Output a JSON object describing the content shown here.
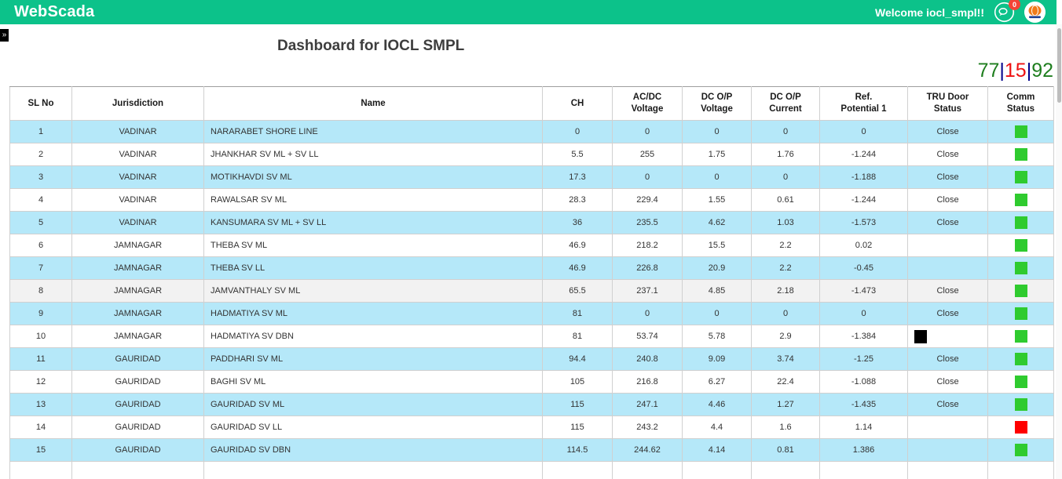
{
  "topbar": {
    "brand": "WebScada",
    "welcome": "Welcome iocl_smpl!!",
    "chat_badge": "0",
    "icons": [
      "chat-icon",
      "indianoil-logo"
    ]
  },
  "sidebar_toggle": "»",
  "page": {
    "title": "Dashboard for IOCL SMPL",
    "counters": {
      "green_left": "77",
      "red_middle": "15",
      "green_right": "92",
      "separator": "|"
    }
  },
  "colors": {
    "topbar_green": "#0cc28a",
    "row_blue": "#b5e8f9",
    "row_hover_gray": "#f2f2f2",
    "status_green": "#2fcb2f",
    "status_red": "#ff0000",
    "tru_black": "#000000",
    "badge_red": "#f44336",
    "counter_green": "#1e7e1e",
    "counter_red": "#ee1111",
    "counter_separator": "#00008b"
  },
  "table": {
    "columns": [
      {
        "key": "sl",
        "label": "SL No"
      },
      {
        "key": "jurisdiction",
        "label": "Jurisdiction"
      },
      {
        "key": "name",
        "label": "Name"
      },
      {
        "key": "ch",
        "label": "CH"
      },
      {
        "key": "acdc_voltage",
        "label": "AC/DC\nVoltage"
      },
      {
        "key": "dcop_voltage",
        "label": "DC O/P\nVoltage"
      },
      {
        "key": "dcop_current",
        "label": "DC O/P\nCurrent"
      },
      {
        "key": "ref_potential_1",
        "label": "Ref.\nPotential 1"
      },
      {
        "key": "tru_door_status",
        "label": "TRU Door\nStatus"
      },
      {
        "key": "comm_status",
        "label": "Comm\nStatus"
      }
    ],
    "rows": [
      {
        "sl": "1",
        "jurisdiction": "VADINAR",
        "name": "NARARABET SHORE LINE",
        "ch": "0",
        "acdc_voltage": "0",
        "dcop_voltage": "0",
        "dcop_current": "0",
        "ref_potential_1": "0",
        "tru_door_status": "Close",
        "comm_status": "green",
        "bg": "blue"
      },
      {
        "sl": "2",
        "jurisdiction": "VADINAR",
        "name": "JHANKHAR SV ML + SV LL",
        "ch": "5.5",
        "acdc_voltage": "255",
        "dcop_voltage": "1.75",
        "dcop_current": "1.76",
        "ref_potential_1": "-1.244",
        "tru_door_status": "Close",
        "comm_status": "green",
        "bg": "white"
      },
      {
        "sl": "3",
        "jurisdiction": "VADINAR",
        "name": "MOTIKHAVDI SV ML",
        "ch": "17.3",
        "acdc_voltage": "0",
        "dcop_voltage": "0",
        "dcop_current": "0",
        "ref_potential_1": "-1.188",
        "tru_door_status": "Close",
        "comm_status": "green",
        "bg": "blue"
      },
      {
        "sl": "4",
        "jurisdiction": "VADINAR",
        "name": "RAWALSAR SV ML",
        "ch": "28.3",
        "acdc_voltage": "229.4",
        "dcop_voltage": "1.55",
        "dcop_current": "0.61",
        "ref_potential_1": "-1.244",
        "tru_door_status": "Close",
        "comm_status": "green",
        "bg": "white"
      },
      {
        "sl": "5",
        "jurisdiction": "VADINAR",
        "name": "KANSUMARA SV ML + SV LL",
        "ch": "36",
        "acdc_voltage": "235.5",
        "dcop_voltage": "4.62",
        "dcop_current": "1.03",
        "ref_potential_1": "-1.573",
        "tru_door_status": "Close",
        "comm_status": "green",
        "bg": "blue"
      },
      {
        "sl": "6",
        "jurisdiction": "JAMNAGAR",
        "name": "THEBA SV ML",
        "ch": "46.9",
        "acdc_voltage": "218.2",
        "dcop_voltage": "15.5",
        "dcop_current": "2.2",
        "ref_potential_1": "0.02",
        "tru_door_status": "",
        "comm_status": "green",
        "bg": "white"
      },
      {
        "sl": "7",
        "jurisdiction": "JAMNAGAR",
        "name": "THEBA SV LL",
        "ch": "46.9",
        "acdc_voltage": "226.8",
        "dcop_voltage": "20.9",
        "dcop_current": "2.2",
        "ref_potential_1": "-0.45",
        "tru_door_status": "",
        "comm_status": "green",
        "bg": "blue"
      },
      {
        "sl": "8",
        "jurisdiction": "JAMNAGAR",
        "name": "JAMVANTHALY SV ML",
        "ch": "65.5",
        "acdc_voltage": "237.1",
        "dcop_voltage": "4.85",
        "dcop_current": "2.18",
        "ref_potential_1": "-1.473",
        "tru_door_status": "Close",
        "comm_status": "green",
        "bg": "gray"
      },
      {
        "sl": "9",
        "jurisdiction": "JAMNAGAR",
        "name": "HADMATIYA SV ML",
        "ch": "81",
        "acdc_voltage": "0",
        "dcop_voltage": "0",
        "dcop_current": "0",
        "ref_potential_1": "0",
        "tru_door_status": "Close",
        "comm_status": "green",
        "bg": "blue"
      },
      {
        "sl": "10",
        "jurisdiction": "JAMNAGAR",
        "name": "HADMATIYA SV DBN",
        "ch": "81",
        "acdc_voltage": "53.74",
        "dcop_voltage": "5.78",
        "dcop_current": "2.9",
        "ref_potential_1": "-1.384",
        "tru_door_status": "black-square",
        "comm_status": "green",
        "bg": "white"
      },
      {
        "sl": "11",
        "jurisdiction": "GAURIDAD",
        "name": "PADDHARI SV ML",
        "ch": "94.4",
        "acdc_voltage": "240.8",
        "dcop_voltage": "9.09",
        "dcop_current": "3.74",
        "ref_potential_1": "-1.25",
        "tru_door_status": "Close",
        "comm_status": "green",
        "bg": "blue"
      },
      {
        "sl": "12",
        "jurisdiction": "GAURIDAD",
        "name": "BAGHI SV ML",
        "ch": "105",
        "acdc_voltage": "216.8",
        "dcop_voltage": "6.27",
        "dcop_current": "22.4",
        "ref_potential_1": "-1.088",
        "tru_door_status": "Close",
        "comm_status": "green",
        "bg": "white"
      },
      {
        "sl": "13",
        "jurisdiction": "GAURIDAD",
        "name": "GAURIDAD SV ML",
        "ch": "115",
        "acdc_voltage": "247.1",
        "dcop_voltage": "4.46",
        "dcop_current": "1.27",
        "ref_potential_1": "-1.435",
        "tru_door_status": "Close",
        "comm_status": "green",
        "bg": "blue"
      },
      {
        "sl": "14",
        "jurisdiction": "GAURIDAD",
        "name": "GAURIDAD SV LL",
        "ch": "115",
        "acdc_voltage": "243.2",
        "dcop_voltage": "4.4",
        "dcop_current": "1.6",
        "ref_potential_1": "1.14",
        "tru_door_status": "",
        "comm_status": "red",
        "bg": "white"
      },
      {
        "sl": "15",
        "jurisdiction": "GAURIDAD",
        "name": "GAURIDAD SV DBN",
        "ch": "114.5",
        "acdc_voltage": "244.62",
        "dcop_voltage": "4.14",
        "dcop_current": "0.81",
        "ref_potential_1": "1.386",
        "tru_door_status": "",
        "comm_status": "green",
        "bg": "blue"
      }
    ]
  }
}
